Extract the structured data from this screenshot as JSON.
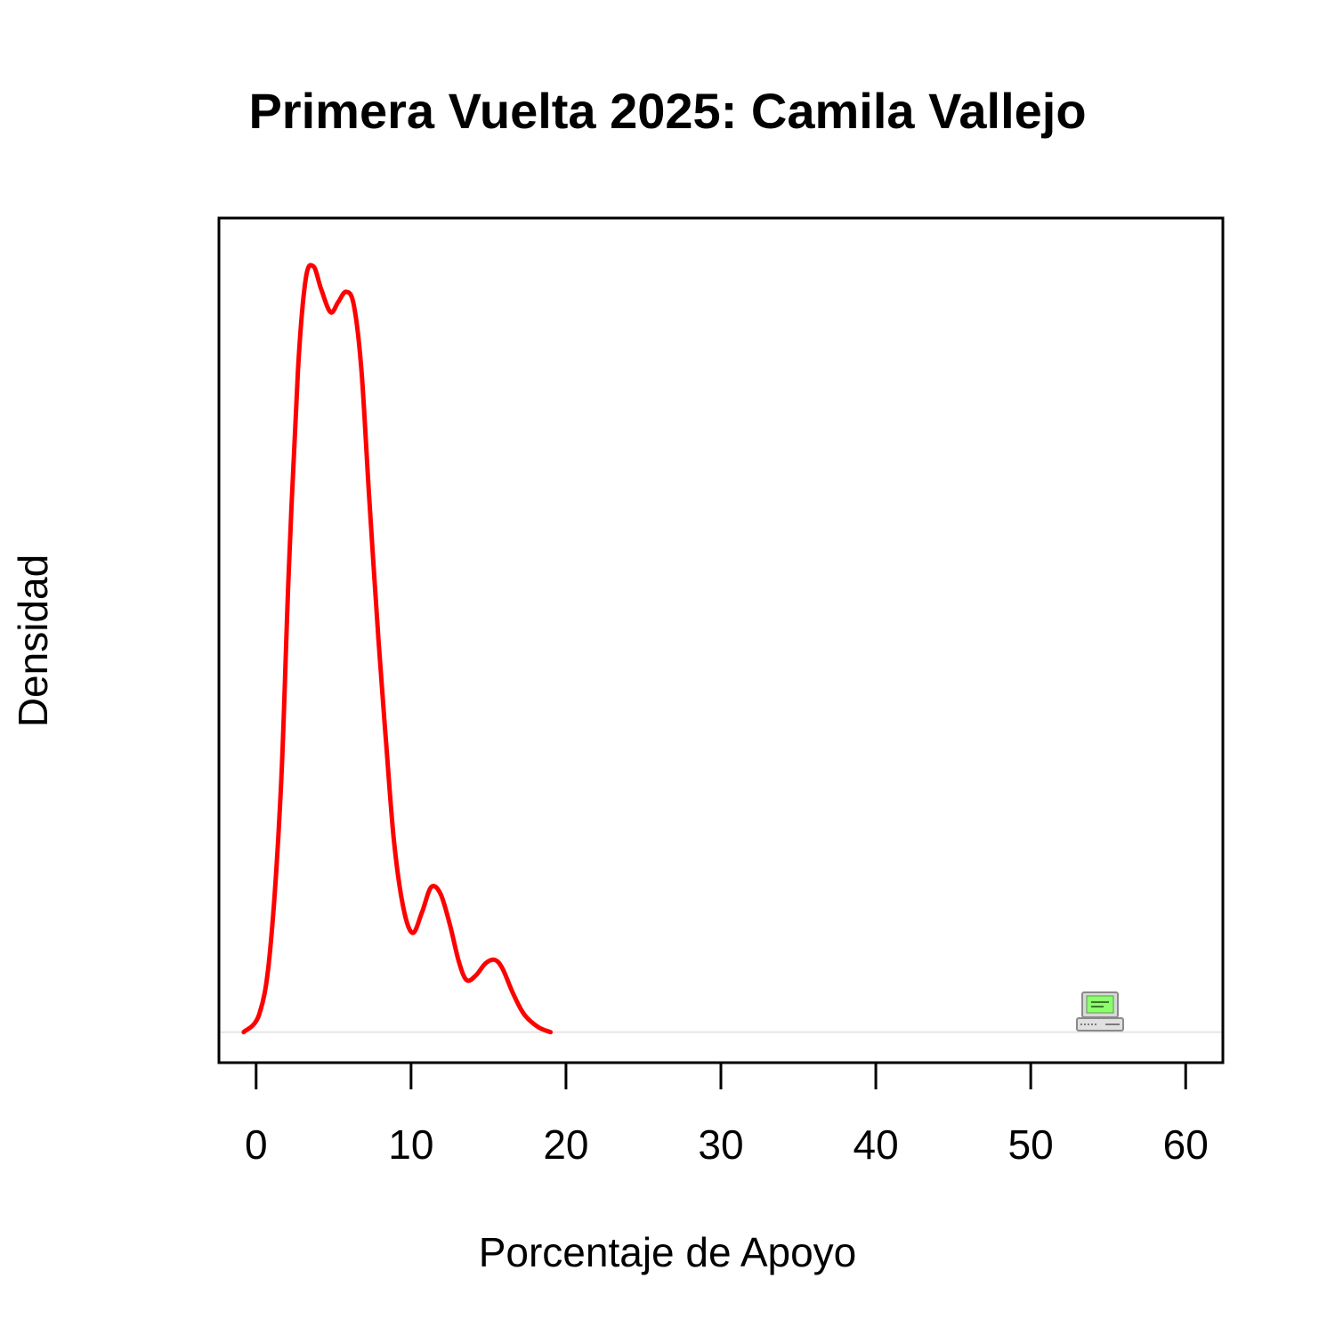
{
  "chart_data": {
    "type": "line",
    "title": "Primera Vuelta 2025: Camila Vallejo",
    "xlabel": "Porcentaje de Apoyo",
    "ylabel": "Densidad",
    "xlim": [
      -2.4,
      62.4
    ],
    "ylim": [
      -0.006,
      0.16
    ],
    "x_ticks": [
      0,
      10,
      20,
      30,
      40,
      50,
      60
    ],
    "x_tick_labels": [
      "0",
      "10",
      "20",
      "30",
      "40",
      "50",
      "60"
    ],
    "y_ticks_shown": false,
    "grid": false,
    "baseline": {
      "y": 0,
      "color": "#e6e6e6"
    },
    "series": [
      {
        "color": "#ff0000",
        "x": [
          -0.8,
          0.2,
          0.9,
          1.6,
          2.1,
          2.7,
          3.2,
          3.7,
          4.2,
          4.8,
          5.3,
          5.8,
          6.3,
          6.8,
          7.3,
          7.9,
          8.4,
          8.9,
          9.5,
          10.1,
          10.7,
          11.3,
          11.9,
          12.5,
          13.1,
          13.6,
          14.2,
          14.8,
          15.4,
          15.9,
          16.6,
          17.3,
          18.2,
          19.0
        ],
        "y": [
          0.0,
          0.0035,
          0.016,
          0.048,
          0.09,
          0.13,
          0.148,
          0.1505,
          0.146,
          0.1415,
          0.1435,
          0.1455,
          0.143,
          0.13,
          0.105,
          0.077,
          0.0565,
          0.0375,
          0.0245,
          0.0195,
          0.0235,
          0.0285,
          0.0272,
          0.0212,
          0.0137,
          0.0102,
          0.0112,
          0.0135,
          0.0142,
          0.0125,
          0.0075,
          0.0035,
          0.001,
          0.0
        ]
      }
    ],
    "watermark_icon": "computer-icon"
  }
}
